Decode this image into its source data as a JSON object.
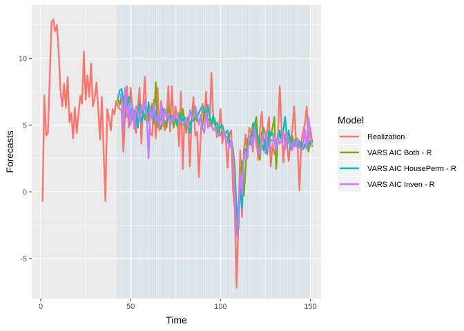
{
  "chart_data": {
    "type": "line",
    "xlabel": "Time",
    "ylabel": "Forecasts",
    "xlim": [
      -5,
      156
    ],
    "ylim": [
      -8,
      14
    ],
    "x_ticks": [
      0,
      50,
      100,
      150
    ],
    "y_ticks": [
      -5,
      0,
      5,
      10
    ],
    "grid": true,
    "legend_title": "Model",
    "legend_position": "right",
    "shaded_band": {
      "from": 43,
      "to": 150,
      "color": "#d0e0ea"
    },
    "series": [
      {
        "name": "Realization",
        "color": "#F8766D",
        "x": [
          1,
          2,
          3,
          4,
          5,
          6,
          7,
          8,
          9,
          10,
          11,
          12,
          13,
          14,
          15,
          16,
          17,
          18,
          19,
          20,
          21,
          22,
          23,
          24,
          25,
          26,
          27,
          28,
          29,
          30,
          31,
          32,
          33,
          34,
          35,
          36,
          37,
          38,
          39,
          40,
          41,
          42,
          43,
          44,
          45,
          46,
          47,
          48,
          49,
          50,
          51,
          52,
          53,
          54,
          55,
          56,
          57,
          58,
          59,
          60,
          61,
          62,
          63,
          64,
          65,
          66,
          67,
          68,
          69,
          70,
          71,
          72,
          73,
          74,
          75,
          76,
          77,
          78,
          79,
          80,
          81,
          82,
          83,
          84,
          85,
          86,
          87,
          88,
          89,
          90,
          91,
          92,
          93,
          94,
          95,
          96,
          97,
          98,
          99,
          100,
          101,
          102,
          103,
          104,
          105,
          106,
          107,
          108,
          109,
          110,
          111,
          112,
          113,
          114,
          115,
          116,
          117,
          118,
          119,
          120,
          121,
          122,
          123,
          124,
          125,
          126,
          127,
          128,
          129,
          130,
          131,
          132,
          133,
          134,
          135,
          136,
          137,
          138,
          139,
          140,
          141,
          142,
          143,
          144,
          145,
          146,
          147,
          148,
          149,
          150,
          151
        ],
        "values": [
          -0.7,
          7.2,
          4.2,
          4.4,
          8.5,
          12.7,
          12.9,
          12.0,
          12.5,
          10.5,
          7.5,
          6.4,
          8.1,
          6.3,
          8.6,
          5.2,
          5.9,
          4.0,
          6.3,
          4.4,
          5.8,
          7.2,
          6.6,
          10.5,
          6.9,
          8.7,
          7.1,
          9.6,
          6.4,
          7.0,
          8.2,
          6.2,
          3.9,
          7.1,
          3.0,
          -0.7,
          6.2,
          5.5,
          4.6,
          6.2,
          5.8,
          6.8,
          6.4,
          6.2,
          6.1,
          3.0,
          6.0,
          7.9,
          4.8,
          7.8,
          6.2,
          5.4,
          4.4,
          6.3,
          7.8,
          3.6,
          6.5,
          8.6,
          5.2,
          6.1,
          4.4,
          4.2,
          6.9,
          4.0,
          7.8,
          4.6,
          6.8,
          5.9,
          4.6,
          5.2,
          7.9,
          4.5,
          7.9,
          5.0,
          6.4,
          5.6,
          3.4,
          7.5,
          1.7,
          5.5,
          4.4,
          5.6,
          1.9,
          5.5,
          7.1,
          4.2,
          4.5,
          1.1,
          4.1,
          6.6,
          5.5,
          7.5,
          4.8,
          5.2,
          8.9,
          5.6,
          5.4,
          4.1,
          4.5,
          6.2,
          3.6,
          4.6,
          3.8,
          1.8,
          4.3,
          4.6,
          0.1,
          -1.3,
          -7.2,
          -2.0,
          3.1,
          -1.9,
          3.0,
          4.3,
          2.5,
          4.8,
          4.4,
          3.0,
          5.0,
          4.0,
          2.4,
          4.6,
          6.0,
          3.7,
          2.9,
          4.5,
          5.6,
          1.9,
          3.6,
          2.8,
          3.6,
          4.2,
          7.9,
          4.9,
          2.2,
          4.3,
          3.6,
          2.3,
          3.8,
          4.6,
          6.4,
          4.0,
          3.2,
          0.1,
          3.7,
          4.5,
          5.1,
          6.4,
          3.7,
          4.8,
          3.8
        ],
        "linewidth": 2.4
      },
      {
        "name": "VARS AIC Both - R",
        "color": "#7CAE00",
        "x": [
          43,
          44,
          45,
          46,
          47,
          48,
          49,
          50,
          51,
          52,
          53,
          54,
          55,
          56,
          57,
          58,
          59,
          60,
          61,
          62,
          63,
          64,
          65,
          66,
          67,
          68,
          69,
          70,
          71,
          72,
          73,
          74,
          75,
          76,
          77,
          78,
          79,
          80,
          81,
          82,
          83,
          84,
          85,
          86,
          87,
          88,
          89,
          90,
          91,
          92,
          93,
          94,
          95,
          96,
          97,
          98,
          99,
          100,
          101,
          102,
          103,
          104,
          105,
          106,
          107,
          108,
          109,
          110,
          111,
          112,
          113,
          114,
          115,
          116,
          117,
          118,
          119,
          120,
          121,
          122,
          123,
          124,
          125,
          126,
          127,
          128,
          129,
          130,
          131,
          132,
          133,
          134,
          135,
          136,
          137,
          138,
          139,
          140,
          141,
          142,
          143,
          144,
          145,
          146,
          147,
          148,
          149,
          150,
          151
        ],
        "values": [
          6.9,
          6.5,
          7.3,
          6.2,
          5.6,
          6.3,
          6.5,
          5.1,
          6.4,
          5.6,
          5.1,
          6.3,
          6.6,
          5.9,
          6.3,
          5.4,
          6.1,
          5.3,
          5.9,
          6.6,
          5.1,
          8.2,
          4.8,
          5.1,
          4.7,
          5.6,
          5.3,
          4.8,
          6.4,
          5.4,
          5.6,
          4.8,
          5.4,
          4.9,
          5.9,
          5.0,
          6.2,
          5.3,
          4.7,
          5.6,
          5.0,
          5.4,
          6.3,
          5.6,
          5.3,
          5.1,
          5.7,
          4.9,
          5.9,
          5.4,
          5.3,
          5.5,
          4.9,
          5.3,
          5.1,
          4.4,
          4.8,
          4.2,
          4.4,
          4.6,
          4.1,
          4.1,
          3.6,
          3.9,
          3.2,
          1.8,
          -1.8,
          -2.8,
          0.8,
          2.3,
          -0.3,
          1.7,
          4.0,
          3.7,
          3.5,
          5.1,
          5.0,
          5.6,
          3.6,
          2.4,
          4.4,
          4.8,
          4.3,
          3.0,
          4.0,
          4.2,
          4.8,
          5.6,
          1.7,
          3.9,
          4.4,
          3.8,
          4.4,
          3.8,
          3.6,
          4.5,
          3.7,
          4.2,
          3.4,
          4.0,
          3.5,
          3.3,
          3.7,
          3.2,
          3.4,
          3.8,
          3.0,
          3.7,
          3.8
        ],
        "linewidth": 2.4
      },
      {
        "name": "VARS AIC HousePerm - R",
        "color": "#00BFC4",
        "x": [
          43,
          44,
          45,
          46,
          47,
          48,
          49,
          50,
          51,
          52,
          53,
          54,
          55,
          56,
          57,
          58,
          59,
          60,
          61,
          62,
          63,
          64,
          65,
          66,
          67,
          68,
          69,
          70,
          71,
          72,
          73,
          74,
          75,
          76,
          77,
          78,
          79,
          80,
          81,
          82,
          83,
          84,
          85,
          86,
          87,
          88,
          89,
          90,
          91,
          92,
          93,
          94,
          95,
          96,
          97,
          98,
          99,
          100,
          101,
          102,
          103,
          104,
          105,
          106,
          107,
          108,
          109,
          110,
          111,
          112,
          113,
          114,
          115,
          116,
          117,
          118,
          119,
          120,
          121,
          122,
          123,
          124,
          125,
          126,
          127,
          128,
          129,
          130,
          131,
          132,
          133,
          134,
          135,
          136,
          137,
          138,
          139,
          140,
          141,
          142,
          143,
          144,
          145,
          146,
          147,
          148,
          149,
          150,
          151
        ],
        "values": [
          7.0,
          7.6,
          7.7,
          6.6,
          7.7,
          6.2,
          7.1,
          5.7,
          5.4,
          6.1,
          5.9,
          4.8,
          6.5,
          5.2,
          5.7,
          6.9,
          5.3,
          6.7,
          5.6,
          6.1,
          5.5,
          6.1,
          5.2,
          5.6,
          5.4,
          6.2,
          5.9,
          5.6,
          5.8,
          5.5,
          5.7,
          5.4,
          5.5,
          5.1,
          5.6,
          5.8,
          5.3,
          5.6,
          5.2,
          5.1,
          4.4,
          5.4,
          5.3,
          6.3,
          5.6,
          5.9,
          6.2,
          6.4,
          6.1,
          5.8,
          6.5,
          5.6,
          5.2,
          5.7,
          5.0,
          5.2,
          4.6,
          4.9,
          5.0,
          4.5,
          4.4,
          4.6,
          3.7,
          3.8,
          2.5,
          0.7,
          -1.0,
          -2.4,
          0.2,
          -1.2,
          2.4,
          3.2,
          3.1,
          3.6,
          4.2,
          4.2,
          5.2,
          4.4,
          4.2,
          3.6,
          3.6,
          3.1,
          4.0,
          2.8,
          4.6,
          4.2,
          4.4,
          3.7,
          3.4,
          3.9,
          4.6,
          3.9,
          4.6,
          5.6,
          3.9,
          4.6,
          3.2,
          3.8,
          3.7,
          3.6,
          3.6,
          3.8,
          3.4,
          3.7,
          3.4,
          3.3,
          3.6,
          3.8,
          3.7
        ],
        "linewidth": 2.4
      },
      {
        "name": "VARS AIC Inven - R",
        "color": "#C77CFF",
        "x": [
          43,
          44,
          45,
          46,
          47,
          48,
          49,
          50,
          51,
          52,
          53,
          54,
          55,
          56,
          57,
          58,
          59,
          60,
          61,
          62,
          63,
          64,
          65,
          66,
          67,
          68,
          69,
          70,
          71,
          72,
          73,
          74,
          75,
          76,
          77,
          78,
          79,
          80,
          81,
          82,
          83,
          84,
          85,
          86,
          87,
          88,
          89,
          90,
          91,
          92,
          93,
          94,
          95,
          96,
          97,
          98,
          99,
          100,
          101,
          102,
          103,
          104,
          105,
          106,
          107,
          108,
          109,
          110,
          111,
          112,
          113,
          114,
          115,
          116,
          117,
          118,
          119,
          120,
          121,
          122,
          123,
          124,
          125,
          126,
          127,
          128,
          129,
          130,
          131,
          132,
          133,
          134,
          135,
          136,
          137,
          138,
          139,
          140,
          141,
          142,
          143,
          144,
          145,
          146,
          147,
          148,
          149,
          150,
          151
        ],
        "values": [
          7.2,
          7.3,
          7.2,
          4.6,
          7.8,
          5.6,
          6.6,
          5.0,
          6.5,
          4.7,
          6.4,
          6.0,
          5.3,
          6.5,
          6.1,
          6.9,
          5.6,
          2.5,
          6.3,
          5.4,
          6.7,
          5.3,
          5.6,
          4.8,
          6.6,
          4.9,
          6.2,
          5.5,
          5.9,
          4.8,
          5.6,
          5.3,
          5.7,
          5.9,
          5.2,
          5.3,
          5.0,
          5.2,
          5.5,
          4.8,
          6.1,
          5.6,
          5.5,
          6.4,
          5.8,
          5.0,
          5.6,
          4.8,
          4.4,
          5.9,
          5.1,
          4.9,
          5.0,
          4.6,
          4.8,
          4.3,
          4.2,
          4.3,
          4.1,
          4.6,
          3.9,
          3.8,
          3.3,
          3.9,
          2.6,
          -0.2,
          -3.3,
          -2.0,
          1.5,
          -0.2,
          2.6,
          3.0,
          2.5,
          4.2,
          3.8,
          3.4,
          4.8,
          3.4,
          3.1,
          2.8,
          3.9,
          4.4,
          4.5,
          3.2,
          3.3,
          3.9,
          3.8,
          4.2,
          3.1,
          4.1,
          3.6,
          3.8,
          4.5,
          3.2,
          4.4,
          3.6,
          3.7,
          3.1,
          3.9,
          3.4,
          4.0,
          3.3,
          3.1,
          3.5,
          4.7,
          3.2,
          5.6,
          4.4,
          3.4
        ],
        "linewidth": 2.4
      }
    ]
  }
}
